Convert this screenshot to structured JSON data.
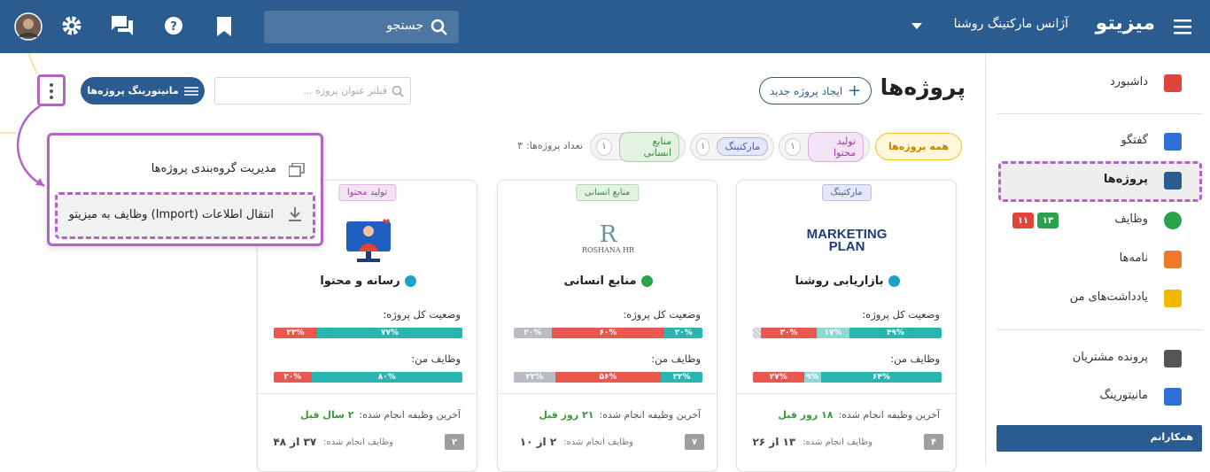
{
  "header": {
    "brand": "میزیتو",
    "agency": "آژانس مارکتینگ روشنا",
    "search": "جستجو"
  },
  "sidebar": {
    "items": [
      "داشبورد",
      "گفتگو",
      "پروژه‌ها",
      "وظایف",
      "نامه‌ها",
      "یادداشت‌های من",
      "پرونده مشتریان",
      "مانیتورینگ"
    ],
    "task_badges": [
      "۱۳",
      "۱۱"
    ],
    "section": "همکارانم"
  },
  "main": {
    "title": "پروژه‌ها",
    "new_project": "ایجاد پروژه جدید",
    "filter": "فیلتر عنوان پروژه ...",
    "monitoring": "مانیتورینگ پروژه‌ها",
    "menu": [
      "مدیریت گروه‌بندی پروژه‌ها",
      "انتقال اطلاعات (Import) وظایف به میزیتو"
    ],
    "all_projects": "همه پروژه‌ها",
    "chips": [
      {
        "label": "تولید محتوا",
        "count": "۱"
      },
      {
        "label": "مارکتینگ",
        "count": "۱"
      },
      {
        "label": "منابع انسانی",
        "count": "۱"
      }
    ],
    "count_label": "تعداد پروژه‌ها:",
    "count": "۳"
  },
  "cards": [
    {
      "tag": "مارکتینگ",
      "logo": "MARKETING PLAN",
      "name": "بازاریابی روشنا",
      "overall_label": "وضعیت کل پروژه:",
      "overall": [
        {
          "value": 49,
          "label": "۴۹%",
          "color": "#2bb5b0"
        },
        {
          "value": 17,
          "label": "۱۷%",
          "color": "#8fd8d4"
        },
        {
          "value": 30,
          "label": "۳۰%",
          "color": "#e8584f"
        },
        {
          "value": 4,
          "color": "#c9ccd2"
        }
      ],
      "tasks_label": "وظایف من:",
      "tasks": [
        {
          "value": 64,
          "label": "۶۴%",
          "color": "#2bb5b0"
        },
        {
          "value": 9,
          "label": "۹%",
          "color": "#8fd8d4"
        },
        {
          "value": 27,
          "label": "۲۷%",
          "color": "#e8584f"
        }
      ],
      "last_label": "آخرین وظیفه انجام شده:",
      "last_value": "۱۸ روز قبل",
      "done_label": "وظایف انجام شده:",
      "done_value": "۱۳ از ۲۶",
      "badge": "۴"
    },
    {
      "tag": "منابع انسانی",
      "logo_mark": "R",
      "logo": "ROSHANA HR",
      "name": "منابع انسانی",
      "overall_label": "وضعیت کل پروژه:",
      "overall": [
        {
          "value": 20,
          "label": "۲۰%",
          "color": "#2bb5b0"
        },
        {
          "value": 60,
          "label": "۶۰%",
          "color": "#e8584f"
        },
        {
          "value": 20,
          "label": "۲۰%",
          "color": "#b9bcc3"
        }
      ],
      "tasks_label": "وظایف من:",
      "tasks": [
        {
          "value": 22,
          "label": "۲۲%",
          "color": "#2bb5b0"
        },
        {
          "value": 56,
          "label": "۵۶%",
          "color": "#e8584f"
        },
        {
          "value": 22,
          "label": "۲۲%",
          "color": "#b9bcc3"
        }
      ],
      "last_label": "آخرین وظیفه انجام شده:",
      "last_value": "۲۱ روز قبل",
      "done_label": "وظایف انجام شده:",
      "done_value": "۲ از ۱۰",
      "badge": "۷"
    },
    {
      "tag": "تولید محتوا",
      "name": "رسانه و محتوا",
      "overall_label": "وضعیت کل پروژه:",
      "overall": [
        {
          "value": 77,
          "label": "۷۷%",
          "color": "#2bb5b0"
        },
        {
          "value": 23,
          "label": "۲۳%",
          "color": "#e8584f"
        }
      ],
      "tasks_label": "وظایف من:",
      "tasks": [
        {
          "value": 80,
          "label": "۸۰%",
          "color": "#2bb5b0"
        },
        {
          "value": 20,
          "label": "۲۰%",
          "color": "#e8584f"
        }
      ],
      "last_label": "آخرین وظیفه انجام شده:",
      "last_value": "۲ سال قبل",
      "done_label": "وظایف انجام شده:",
      "done_value": "۳۷ از ۴۸",
      "badge": "۲"
    }
  ]
}
